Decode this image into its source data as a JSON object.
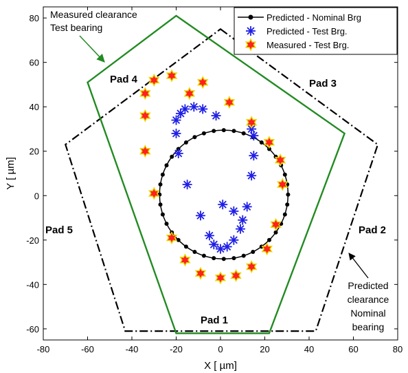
{
  "chart_data": {
    "type": "scatter",
    "xlabel": "X [ µm]",
    "ylabel": "Y [ µm]",
    "xlim": [
      -80,
      80
    ],
    "ylim": [
      -65,
      85
    ],
    "xticks": [
      -80,
      -60,
      -40,
      -20,
      0,
      20,
      40,
      60,
      80
    ],
    "yticks": [
      -60,
      -40,
      -20,
      0,
      20,
      40,
      60,
      80
    ],
    "grid": false,
    "legend_position": "top-right",
    "colors": {
      "nominal": "#000000",
      "predicted_test": "#1f1fe6",
      "measured_fill": "#ff2020",
      "measured_edge": "#e8d800",
      "measured_clearance": "#228b22",
      "predicted_clearance": "#000000"
    },
    "series": [
      {
        "name": "Predicted - Nominal Brg",
        "style": "line-dot",
        "center": [
          1.5,
          0.5
        ],
        "radius": 29,
        "points": 40
      },
      {
        "name": "Predicted - Test Brg.",
        "style": "asterisk",
        "x": [
          -2,
          -8,
          -12,
          -16,
          -18,
          -20,
          -20,
          -19,
          -15,
          -9,
          -5,
          -3,
          0,
          3,
          6,
          9,
          12,
          14,
          15,
          15,
          14,
          10,
          6,
          1
        ],
        "y": [
          36,
          39,
          40,
          39,
          37,
          34,
          28,
          19,
          5,
          -9,
          -18,
          -22,
          -24,
          -23,
          -20,
          -15,
          -5,
          9,
          18,
          27,
          30,
          -11,
          -7,
          -4
        ]
      },
      {
        "name": "Measured - Test Brg.",
        "style": "hexagram",
        "x": [
          -22,
          -30,
          -34,
          -34,
          -34,
          -30,
          -22,
          -16,
          -9,
          0,
          7,
          14,
          21,
          25,
          28,
          27,
          22,
          14,
          4,
          -8,
          -14
        ],
        "y": [
          54,
          52,
          46,
          36,
          20,
          1,
          -19,
          -29,
          -35,
          -37,
          -36,
          -32,
          -24,
          -13,
          5,
          16,
          24,
          33,
          42,
          51,
          46
        ]
      }
    ],
    "measured_clearance": {
      "name": "Measured clearance",
      "polygon": [
        [
          -20,
          81
        ],
        [
          56,
          28
        ],
        [
          22,
          -62
        ],
        [
          -20,
          -62
        ],
        [
          -60,
          51
        ]
      ]
    },
    "predicted_clearance": {
      "name": "Predicted clearance",
      "polygon": [
        [
          0,
          75
        ],
        [
          71,
          23
        ],
        [
          43,
          -61
        ],
        [
          -43,
          -61
        ],
        [
          -70,
          23
        ]
      ]
    },
    "labels": {
      "pad1": "Pad 1",
      "pad2": "Pad 2",
      "pad3": "Pad 3",
      "pad4": "Pad 4",
      "pad5": "Pad 5"
    },
    "annotations": {
      "measured_line1": "Measured clearance",
      "measured_line2": "Test bearing",
      "predicted_line1": "Predicted",
      "predicted_line2": "clearance",
      "predicted_line3": "Nominal",
      "predicted_line4": "bearing"
    }
  }
}
